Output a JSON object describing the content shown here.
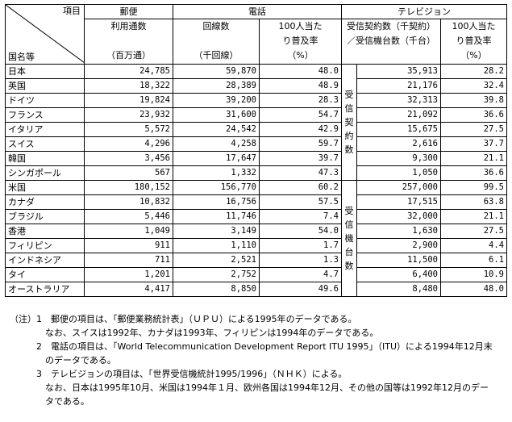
{
  "header": {
    "corner_item": "項目",
    "corner_country": "国名等",
    "postal": "郵便",
    "postal_sub": "利用通数",
    "postal_unit": "（百万通）",
    "phone": "電話",
    "phone_lines": "回線数",
    "phone_lines_unit": "（千回線）",
    "phone_rate_1": "100人当た",
    "phone_rate_2": "り普及率",
    "phone_rate_unit": "（%）",
    "tv": "テレビジョン",
    "tv_count_1": "受信契約数（千契約）",
    "tv_count_2": "／受信機台数（千台）",
    "tv_rate_1": "100人当た",
    "tv_rate_2": "り普及率",
    "tv_rate_unit": "（%）"
  },
  "tv_group_contracts": [
    "受",
    "信",
    "契",
    "約",
    "数"
  ],
  "tv_group_receivers": [
    "受",
    "信",
    "機",
    "台",
    "数"
  ],
  "rows": [
    {
      "country": "日本",
      "mail": "24,785",
      "lines": "59,870",
      "phone_rate": "48.0",
      "tv": "35,913",
      "tv_rate": "28.2"
    },
    {
      "country": "英国",
      "mail": "18,322",
      "lines": "28,389",
      "phone_rate": "48.9",
      "tv": "21,176",
      "tv_rate": "32.4"
    },
    {
      "country": "ドイツ",
      "mail": "19,824",
      "lines": "39,200",
      "phone_rate": "28.3",
      "tv": "32,313",
      "tv_rate": "39.8"
    },
    {
      "country": "フランス",
      "mail": "23,932",
      "lines": "31,600",
      "phone_rate": "54.7",
      "tv": "21,092",
      "tv_rate": "36.6"
    },
    {
      "country": "イタリア",
      "mail": "5,572",
      "lines": "24,542",
      "phone_rate": "42.9",
      "tv": "15,675",
      "tv_rate": "27.5"
    },
    {
      "country": "スイス",
      "mail": "4,296",
      "lines": "4,258",
      "phone_rate": "59.7",
      "tv": "2,616",
      "tv_rate": "37.7"
    },
    {
      "country": "韓国",
      "mail": "3,456",
      "lines": "17,647",
      "phone_rate": "39.7",
      "tv": "9,300",
      "tv_rate": "21.1"
    },
    {
      "country": "シンガポール",
      "mail": "567",
      "lines": "1,332",
      "phone_rate": "47.3",
      "tv": "1,050",
      "tv_rate": "36.6"
    },
    {
      "country": "米国",
      "mail": "180,152",
      "lines": "156,770",
      "phone_rate": "60.2",
      "tv": "257,000",
      "tv_rate": "99.5"
    },
    {
      "country": "カナダ",
      "mail": "10,832",
      "lines": "16,756",
      "phone_rate": "57.5",
      "tv": "17,515",
      "tv_rate": "63.8"
    },
    {
      "country": "ブラジル",
      "mail": "5,446",
      "lines": "11,746",
      "phone_rate": "7.4",
      "tv": "32,000",
      "tv_rate": "21.1"
    },
    {
      "country": "香港",
      "mail": "1,049",
      "lines": "3,149",
      "phone_rate": "54.0",
      "tv": "1,630",
      "tv_rate": "27.5"
    },
    {
      "country": "フィリピン",
      "mail": "911",
      "lines": "1,110",
      "phone_rate": "1.7",
      "tv": "2,900",
      "tv_rate": "4.4"
    },
    {
      "country": "インドネシア",
      "mail": "711",
      "lines": "2,521",
      "phone_rate": "1.3",
      "tv": "11,500",
      "tv_rate": "6.1"
    },
    {
      "country": "タイ",
      "mail": "1,201",
      "lines": "2,752",
      "phone_rate": "4.7",
      "tv": "6,400",
      "tv_rate": "10.9"
    },
    {
      "country": "オーストラリア",
      "mail": "4,417",
      "lines": "8,850",
      "phone_rate": "49.6",
      "tv": "8,480",
      "tv_rate": "48.0"
    }
  ],
  "notes": [
    "（注）1　郵便の項目は、「郵便業務統計表」（ＵＰＵ）による1995年のデータである。",
    "　　　　なお、スイスは1992年、カナダは1993年、フィリピンは1994年のデータである。",
    "　　　2　電話の項目は、「World Telecommunication Development Report ITU 1995」（ITU）による1994年12月末",
    "　　　　のデータである。",
    "　　　3　テレビジョンの項目は、「世界受信機統計1995/1996」（ＮＨＫ）による。",
    "　　　　なお、日本は1995年10月、米国は1994年１月、欧州各国は1994年12月、その他の国等は1992年12月のデー",
    "　　　　タである。"
  ]
}
